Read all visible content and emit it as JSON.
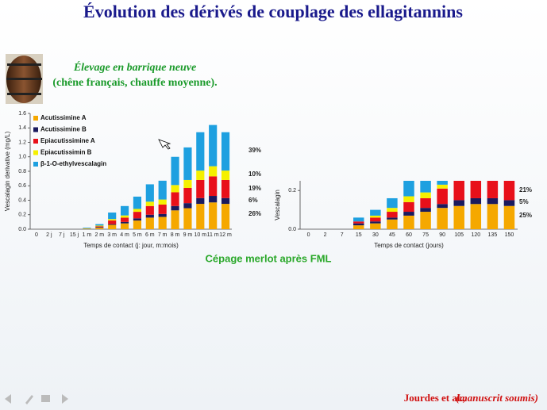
{
  "title": "Évolution des dérivés de couplage des ellagitannins",
  "subtitle": [
    "Élevage en barrique neuve",
    "(chêne français, chauffe moyenne)."
  ],
  "caption": "Cépage merlot après FML",
  "citation": [
    "Jourdes et al., ",
    "(manuscrit soumis)"
  ],
  "chart_data": [
    {
      "type": "stacked_bar",
      "x_label": "Temps de contact (j: jour, m:mois)",
      "y_label": "Vescalagin derivative (mg/L)",
      "categories": [
        "0",
        "2 j",
        "7 j",
        "15 j",
        "1 m",
        "2 m",
        "3 m",
        "4 m",
        "5 m",
        "6 m",
        "7 m",
        "8 m",
        "9 m",
        "10 m",
        "11 m",
        "12 m"
      ],
      "ylim": [
        0,
        1.6
      ],
      "yticks": [
        {
          "value": 0,
          "label": "0.0"
        },
        {
          "value": 0.2,
          "label": "0.2"
        },
        {
          "value": 0.4,
          "label": "0.4"
        },
        {
          "value": 0.6,
          "label": "0.6"
        },
        {
          "value": 0.8,
          "label": "0.8"
        },
        {
          "value": 1,
          "label": "1.0"
        },
        {
          "value": 1.2,
          "label": "1.2"
        },
        {
          "value": 1.4,
          "label": "1.4"
        },
        {
          "value": 1.6,
          "label": "1.6"
        }
      ],
      "legend": "top-left",
      "series": [
        {
          "name": "Acutissimine A",
          "color": "#f5a800",
          "values": [
            0,
            0,
            0,
            0,
            0.01,
            0.02,
            0.06,
            0.08,
            0.12,
            0.16,
            0.17,
            0.26,
            0.29,
            0.35,
            0.37,
            0.35
          ]
        },
        {
          "name": "Acutissimine B",
          "color": "#1a1a5e",
          "values": [
            0,
            0,
            0,
            0,
            0,
            0.01,
            0.01,
            0.02,
            0.03,
            0.04,
            0.04,
            0.06,
            0.07,
            0.08,
            0.09,
            0.08
          ]
        },
        {
          "name": "Epiacutissimine A",
          "color": "#e8101a",
          "values": [
            0,
            0,
            0,
            0,
            0,
            0.01,
            0.05,
            0.06,
            0.09,
            0.12,
            0.13,
            0.19,
            0.21,
            0.25,
            0.27,
            0.25
          ]
        },
        {
          "name": "Epiacutissimin B",
          "color": "#f5f000",
          "values": [
            0,
            0,
            0,
            0,
            0,
            0.01,
            0.02,
            0.03,
            0.04,
            0.06,
            0.07,
            0.1,
            0.11,
            0.13,
            0.14,
            0.13
          ]
        },
        {
          "name": "β-1-O-ethylvescalagin",
          "color": "#1ea0e0",
          "values": [
            0,
            0,
            0,
            0,
            0.01,
            0.02,
            0.09,
            0.13,
            0.17,
            0.24,
            0.26,
            0.39,
            0.45,
            0.53,
            0.57,
            0.53
          ]
        }
      ],
      "annotations": [
        "39%",
        "10%",
        "19%",
        "6%",
        "26%"
      ]
    },
    {
      "type": "stacked_bar",
      "x_label": "Temps de contact (jours)",
      "y_label": "Vescalagin",
      "categories": [
        "0",
        "2",
        "7",
        "15",
        "30",
        "45",
        "60",
        "75",
        "90",
        "105",
        "120",
        "135",
        "150"
      ],
      "ylim": [
        0,
        0.25
      ],
      "yticks": [
        {
          "value": 0,
          "label": "0.0"
        },
        {
          "value": 0.2,
          "label": "0.2"
        }
      ],
      "series": [
        {
          "name": "Acutissimine A",
          "color": "#f5a800",
          "values": [
            0,
            0,
            0,
            0.02,
            0.03,
            0.05,
            0.07,
            0.09,
            0.11,
            0.12,
            0.13,
            0.13,
            0.12
          ]
        },
        {
          "name": "Acutissimine B",
          "color": "#1a1a5e",
          "values": [
            0,
            0,
            0,
            0.01,
            0.01,
            0.01,
            0.02,
            0.02,
            0.02,
            0.03,
            0.03,
            0.03,
            0.03
          ]
        },
        {
          "name": "Epiacutissimine A",
          "color": "#e8101a",
          "values": [
            0,
            0,
            0,
            0.01,
            0.02,
            0.03,
            0.05,
            0.05,
            0.08,
            0.1,
            0.09,
            0.09,
            0.1
          ]
        },
        {
          "name": "Epiacutissimin B",
          "color": "#f5f000",
          "values": [
            0,
            0,
            0,
            0,
            0.01,
            0.02,
            0.03,
            0.03,
            0.02,
            0,
            0,
            0,
            0
          ]
        },
        {
          "name": "β-1-O-ethylvescalagin",
          "color": "#1ea0e0",
          "values": [
            0,
            0,
            0,
            0.02,
            0.03,
            0.05,
            0.08,
            0.06,
            0.02,
            0,
            0,
            0,
            0
          ]
        }
      ],
      "annotations": [
        "21%",
        "5%",
        "25%"
      ]
    }
  ]
}
